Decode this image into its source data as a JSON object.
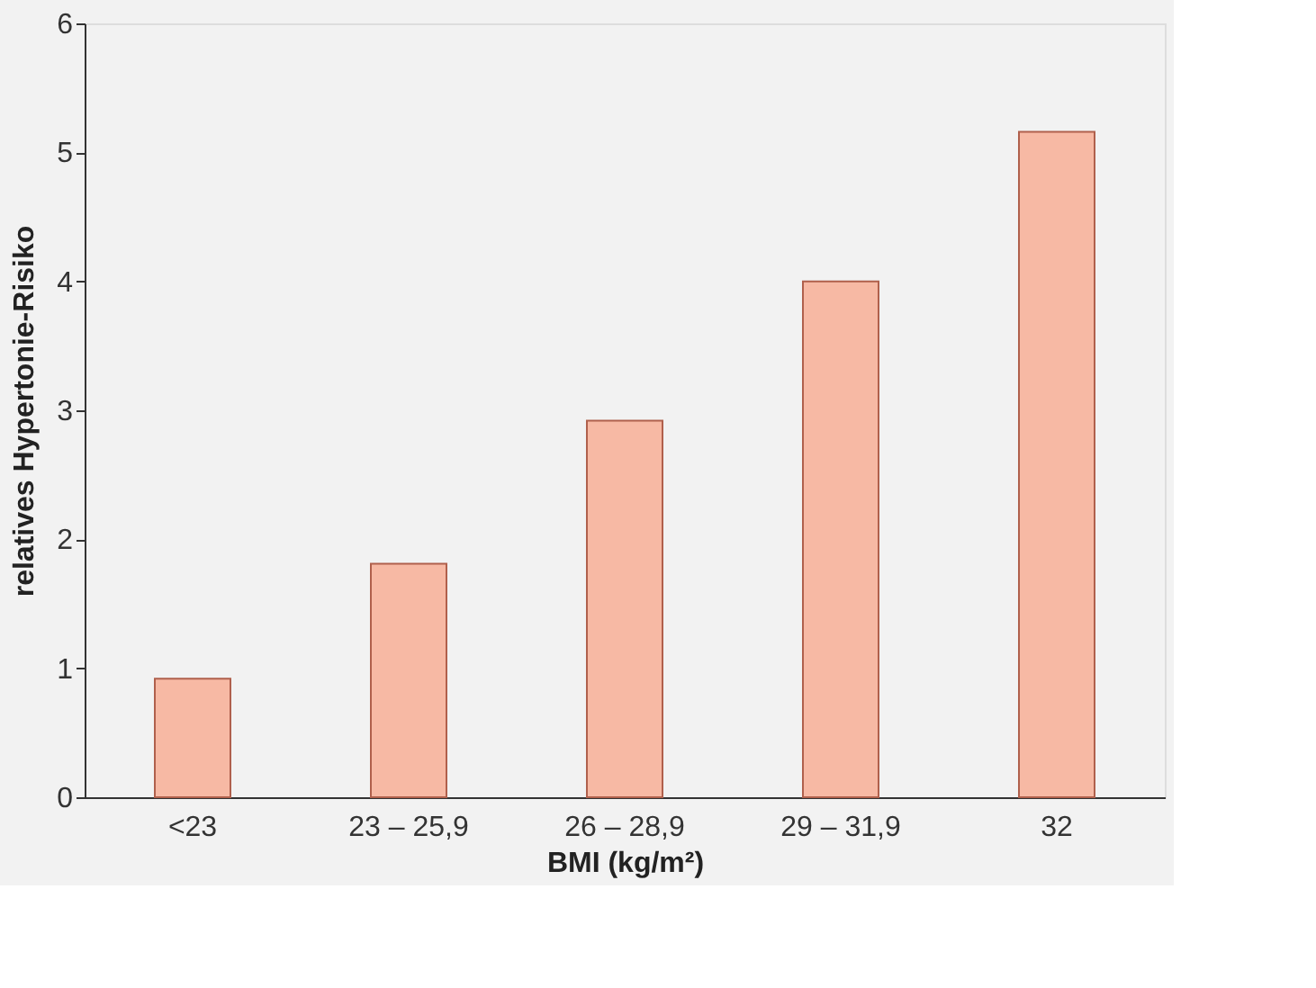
{
  "chart_data": {
    "type": "bar",
    "xlabel": "BMI (kg/m²)",
    "ylabel": "relatives Hypertonie-Risiko",
    "categories": [
      "<23",
      "23 – 25,9",
      "26 – 28,9",
      "29 – 31,9",
      "32"
    ],
    "values": [
      0.92,
      1.81,
      2.92,
      4.0,
      5.16
    ],
    "color": "#f7b9a4",
    "ylim": [
      0,
      6
    ],
    "yticks": [
      0,
      1,
      2,
      3,
      4,
      5,
      6
    ],
    "grid": false
  }
}
